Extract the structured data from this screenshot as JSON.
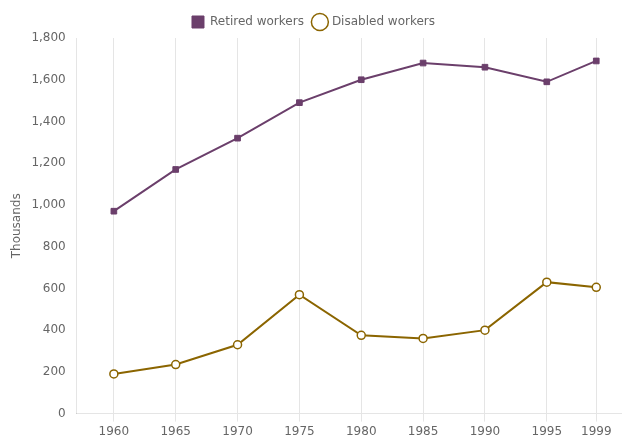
{
  "chart_data": {
    "type": "line",
    "ylabel": "Thousands",
    "x": [
      1960,
      1965,
      1970,
      1975,
      1980,
      1985,
      1990,
      1995,
      1999
    ],
    "series": [
      {
        "name": "Retired workers",
        "color": "#6b3f6b",
        "marker": "square",
        "values": [
          970,
          1170,
          1320,
          1490,
          1600,
          1680,
          1660,
          1590,
          1690
        ]
      },
      {
        "name": "Disabled workers",
        "color": "#8b6500",
        "marker": "circle_open",
        "values": [
          190,
          235,
          330,
          570,
          375,
          360,
          400,
          630,
          605
        ]
      }
    ],
    "xlim": [
      1957,
      2001
    ],
    "xticks": [
      1960,
      1965,
      1970,
      1975,
      1980,
      1985,
      1990,
      1995,
      1999
    ],
    "ylim": [
      0,
      1800
    ],
    "yticks": [
      0,
      200,
      400,
      600,
      800,
      {
        "value": 1000,
        "label": "1,000"
      },
      {
        "value": 1200,
        "label": "1,200"
      },
      {
        "value": 1400,
        "label": "1,400"
      },
      {
        "value": 1600,
        "label": "1,600"
      },
      {
        "value": 1800,
        "label": "1,800"
      }
    ],
    "grid": "x",
    "legend": "top"
  }
}
